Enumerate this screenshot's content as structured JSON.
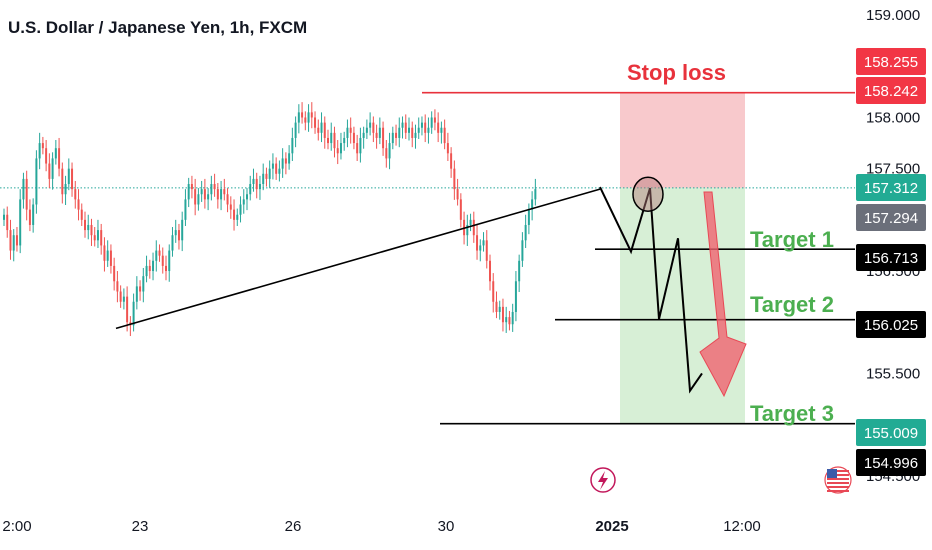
{
  "header": {
    "title": "U.S. Dollar / Japanese Yen, 1h, FXCM"
  },
  "colors": {
    "up": "#26a69a",
    "down": "#ef5350",
    "stop": "#e8323c",
    "target_text": "#4caf50",
    "stop_zone": "#f8c9cc",
    "target_zone": "#d7efd6",
    "price_line": "#26a69a",
    "label_red": "#f23645",
    "label_green": "#22ab94",
    "label_gray": "#6b6f7a",
    "label_black": "#000000",
    "arrow": "#f06470"
  },
  "icons": {
    "flash_event": "lightning-bolt-icon",
    "country_event": "us-flag-icon"
  },
  "chart_data": {
    "type": "candlestick",
    "title": "U.S. Dollar / Japanese Yen, 1h, FXCM",
    "ylim": [
      154.4,
      159.05
    ],
    "y_ticks": [
      {
        "v": 159.0,
        "label": "159.000"
      },
      {
        "v": 158.0,
        "label": "158.000"
      },
      {
        "v": 157.5,
        "label": "157.500"
      },
      {
        "v": 156.5,
        "label": "156.500"
      },
      {
        "v": 155.5,
        "label": "155.500"
      },
      {
        "v": 154.5,
        "label": "154.500"
      }
    ],
    "x_ticks": [
      {
        "label": "2:00",
        "bold": false
      },
      {
        "label": "23",
        "bold": false
      },
      {
        "label": "26",
        "bold": false
      },
      {
        "label": "30",
        "bold": false
      },
      {
        "label": "2025",
        "bold": true
      },
      {
        "label": "12:00",
        "bold": false
      }
    ],
    "price_labels": [
      {
        "value": "158.255",
        "bg": "#f23645",
        "fg": "#ffffff"
      },
      {
        "value": "158.242",
        "bg": "#f23645",
        "fg": "#ffffff"
      },
      {
        "value": "157.312",
        "bg": "#22ab94",
        "fg": "#ffffff"
      },
      {
        "value": "157.294",
        "bg": "#6b6f7a",
        "fg": "#ffffff"
      },
      {
        "value": "156.713",
        "bg": "#000000",
        "fg": "#ffffff"
      },
      {
        "value": "156.025",
        "bg": "#000000",
        "fg": "#ffffff"
      },
      {
        "value": "155.009",
        "bg": "#22ab94",
        "fg": "#ffffff"
      },
      {
        "value": "154.996",
        "bg": "#000000",
        "fg": "#ffffff"
      }
    ],
    "annotations": {
      "stop_loss": {
        "text": "Stop loss",
        "value": 158.242
      },
      "targets": [
        {
          "text": "Target 1",
          "value": 156.713
        },
        {
          "text": "Target 2",
          "value": 156.025
        },
        {
          "text": "Target 3",
          "value": 155.009
        }
      ],
      "entry": 157.312
    },
    "trend_line": {
      "from": 155.94,
      "to": 157.3
    },
    "path_line": [
      157.32,
      156.69,
      157.31,
      156.03,
      156.82,
      155.33,
      155.5
    ],
    "series_close": [
      157.05,
      156.9,
      156.7,
      156.85,
      156.75,
      157.2,
      157.4,
      157.1,
      156.95,
      157.15,
      157.6,
      157.75,
      157.7,
      157.55,
      157.4,
      157.6,
      157.7,
      157.5,
      157.25,
      157.35,
      157.5,
      157.3,
      157.2,
      157.1,
      157.0,
      156.9,
      156.95,
      156.85,
      156.8,
      156.9,
      156.75,
      156.6,
      156.7,
      156.55,
      156.4,
      156.3,
      156.2,
      156.25,
      156.0,
      155.97,
      156.2,
      156.35,
      156.3,
      156.45,
      156.55,
      156.5,
      156.6,
      156.7,
      156.65,
      156.55,
      156.5,
      156.7,
      156.85,
      156.9,
      156.8,
      157.0,
      157.2,
      157.35,
      157.3,
      157.15,
      157.25,
      157.3,
      157.2,
      157.25,
      157.35,
      157.3,
      157.2,
      157.3,
      157.25,
      157.15,
      157.1,
      157.0,
      157.05,
      157.15,
      157.2,
      157.25,
      157.35,
      157.4,
      157.3,
      157.35,
      157.45,
      157.4,
      157.5,
      157.55,
      157.45,
      157.5,
      157.6,
      157.55,
      157.65,
      157.8,
      157.95,
      158.05,
      158.0,
      157.95,
      158.05,
      158.0,
      157.9,
      157.85,
      157.95,
      157.8,
      157.75,
      157.85,
      157.7,
      157.65,
      157.75,
      157.8,
      157.9,
      157.85,
      157.75,
      157.65,
      157.8,
      157.85,
      157.9,
      157.95,
      157.85,
      157.8,
      157.9,
      157.7,
      157.6,
      157.75,
      157.85,
      157.8,
      157.9,
      157.95,
      157.85,
      157.9,
      157.8,
      157.85,
      157.9,
      157.95,
      157.85,
      157.9,
      158.0,
      157.95,
      157.85,
      157.9,
      157.75,
      157.65,
      157.5,
      157.3,
      157.2,
      157.0,
      156.85,
      156.95,
      157.0,
      156.85,
      156.7,
      156.75,
      156.8,
      156.6,
      156.4,
      156.2,
      156.1,
      156.15,
      156.0,
      156.05,
      155.98,
      156.1,
      156.4,
      156.6,
      156.8,
      156.95,
      157.1,
      157.2,
      157.3
    ]
  }
}
